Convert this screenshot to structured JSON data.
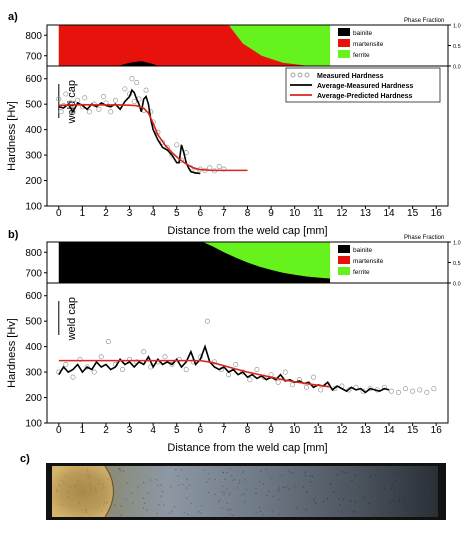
{
  "chart_data": [
    {
      "panel_label": "a)",
      "type": "line",
      "xlabel": "Distance from the weld cap [mm]",
      "ylabel": "Hardness [Hv]",
      "xlim": [
        -0.5,
        16.5
      ],
      "ylim": [
        100,
        650
      ],
      "xticks": [
        0,
        1,
        2,
        3,
        4,
        5,
        6,
        7,
        8,
        9,
        10,
        11,
        12,
        13,
        14,
        15,
        16
      ],
      "yticks": [
        100,
        200,
        300,
        400,
        500,
        600
      ],
      "annotation": "weld cap",
      "legend_position": "top-right",
      "legend": [
        "Measured Hardness",
        "Average-Measured Hardness",
        "Average-Predicted Hardness"
      ],
      "phase_panel": {
        "title": "Phase Fraction",
        "ylim": [
          650,
          850
        ],
        "yticks": [
          700,
          800
        ],
        "right_ticks": [
          "1.0",
          "0.5",
          "0.0"
        ],
        "x_end": 11.5,
        "legend": [
          {
            "name": "bainite",
            "color": "#000000"
          },
          {
            "name": "martensite",
            "color": "#e8120c"
          },
          {
            "name": "ferrite",
            "color": "#66f21c"
          }
        ],
        "bainite": {
          "x": [
            0,
            2.5,
            3,
            3.5,
            4,
            4.2,
            11.5
          ],
          "frac": [
            0,
            0,
            0.08,
            0.12,
            0.05,
            0,
            0
          ]
        },
        "martensite_end": {
          "x": [
            0,
            7.2,
            7.4,
            7.8,
            8.6,
            9.5,
            10.5,
            11.5
          ],
          "frac": [
            1,
            1,
            0.85,
            0.55,
            0.25,
            0.08,
            0.01,
            0
          ]
        }
      },
      "series": [
        {
          "name": "Measured Hardness",
          "style": "markers",
          "x": [
            0,
            0.1,
            0.2,
            0.3,
            0.5,
            0.6,
            0.8,
            1.0,
            1.1,
            1.3,
            1.5,
            1.7,
            1.9,
            2.0,
            2.2,
            2.4,
            2.6,
            2.8,
            3.0,
            3.1,
            3.2,
            3.3,
            3.4,
            3.6,
            3.7,
            3.9,
            4.0,
            4.2,
            4.4,
            4.6,
            4.8,
            5.0,
            5.2,
            5.4,
            5.6,
            5.8,
            6.0,
            6.2,
            6.4,
            6.6,
            6.8,
            7.0
          ],
          "y": [
            520,
            470,
            495,
            540,
            505,
            470,
            515,
            490,
            525,
            470,
            500,
            480,
            530,
            505,
            470,
            515,
            490,
            560,
            540,
            600,
            510,
            585,
            520,
            475,
            555,
            470,
            430,
            390,
            350,
            330,
            300,
            340,
            280,
            310,
            250,
            235,
            245,
            240,
            250,
            238,
            255,
            245
          ]
        },
        {
          "name": "Average-Measured Hardness",
          "color": "#000000",
          "x": [
            0,
            0.2,
            0.4,
            0.6,
            0.8,
            1.0,
            1.2,
            1.4,
            1.6,
            1.8,
            2.0,
            2.2,
            2.4,
            2.6,
            2.8,
            3.0,
            3.1,
            3.2,
            3.3,
            3.4,
            3.5,
            3.6,
            3.7,
            3.8,
            3.9,
            4.0,
            4.1,
            4.2,
            4.4,
            4.6,
            4.8,
            5.0,
            5.1,
            5.2,
            5.3,
            5.4,
            5.5,
            5.6,
            5.8,
            6.0
          ],
          "y": [
            490,
            485,
            500,
            470,
            505,
            495,
            480,
            500,
            490,
            505,
            495,
            490,
            500,
            480,
            510,
            530,
            555,
            545,
            520,
            500,
            470,
            520,
            530,
            500,
            440,
            400,
            380,
            360,
            330,
            320,
            300,
            270,
            270,
            340,
            310,
            270,
            250,
            235,
            230,
            228
          ]
        },
        {
          "name": "Average-Predicted Hardness",
          "color": "#d9261c",
          "x": [
            0,
            0.5,
            1,
            1.5,
            2,
            2.5,
            3,
            3.3,
            3.6,
            3.8,
            4.0,
            4.2,
            4.5,
            4.8,
            5.1,
            5.4,
            5.7,
            6.0,
            6.5,
            7,
            7.5,
            8
          ],
          "y": [
            495,
            497,
            498,
            497,
            497,
            497,
            496,
            494,
            484,
            465,
            425,
            380,
            340,
            310,
            285,
            265,
            250,
            243,
            240,
            240,
            240,
            240
          ]
        }
      ]
    },
    {
      "panel_label": "b)",
      "type": "line",
      "xlabel": "Distance from the weld cap [mm]",
      "ylabel": "Hardness [Hv]",
      "xlim": [
        -0.5,
        16.5
      ],
      "ylim": [
        100,
        650
      ],
      "xticks": [
        0,
        1,
        2,
        3,
        4,
        5,
        6,
        7,
        8,
        9,
        10,
        11,
        12,
        13,
        14,
        15,
        16
      ],
      "yticks": [
        100,
        200,
        300,
        400,
        500,
        600
      ],
      "annotation": "weld cap",
      "phase_panel": {
        "title": "Phase Fraction",
        "ylim": [
          650,
          850
        ],
        "yticks": [
          700,
          800
        ],
        "right_ticks": [
          "1.0",
          "0.5",
          "0.0"
        ],
        "x_end": 11.5,
        "legend": [
          {
            "name": "bainite",
            "color": "#000000"
          },
          {
            "name": "martensite",
            "color": "#e8120c"
          },
          {
            "name": "ferrite",
            "color": "#66f21c"
          }
        ],
        "bainite_top": {
          "x": [
            0,
            6.1,
            6.5,
            7,
            7.5,
            8,
            8.5,
            9,
            9.5,
            10,
            10.5,
            11,
            11.5
          ],
          "frac": [
            1,
            1,
            0.9,
            0.75,
            0.62,
            0.5,
            0.4,
            0.32,
            0.25,
            0.2,
            0.16,
            0.13,
            0.11
          ]
        }
      },
      "series": [
        {
          "name": "Measured Hardness",
          "style": "markers",
          "x": [
            0,
            0.3,
            0.6,
            0.9,
            1.2,
            1.5,
            1.8,
            2.1,
            2.4,
            2.7,
            3.0,
            3.3,
            3.6,
            3.9,
            4.2,
            4.5,
            4.8,
            5.1,
            5.4,
            5.7,
            6.0,
            6.3,
            6.6,
            6.9,
            7.2,
            7.5,
            7.8,
            8.1,
            8.4,
            8.7,
            9.0,
            9.3,
            9.6,
            9.9,
            10.2,
            10.5,
            10.8,
            11.1,
            11.4,
            11.7,
            12.0,
            12.3,
            12.6,
            12.9,
            13.2,
            13.5,
            13.8,
            14.1,
            14.4,
            14.7,
            15.0,
            15.3,
            15.6,
            15.9
          ],
          "y": [
            300,
            330,
            280,
            350,
            320,
            300,
            360,
            420,
            330,
            310,
            350,
            340,
            380,
            320,
            340,
            360,
            330,
            350,
            310,
            340,
            360,
            500,
            340,
            310,
            290,
            330,
            300,
            270,
            310,
            280,
            290,
            260,
            300,
            250,
            270,
            240,
            280,
            230,
            250,
            235,
            245,
            230,
            240,
            225,
            235,
            230,
            240,
            225,
            220,
            235,
            225,
            230,
            220,
            235
          ]
        },
        {
          "name": "Average-Measured Hardness",
          "color": "#000000",
          "x": [
            0,
            0.2,
            0.4,
            0.6,
            0.8,
            1.0,
            1.2,
            1.4,
            1.6,
            1.8,
            2.0,
            2.2,
            2.4,
            2.6,
            2.8,
            3.0,
            3.2,
            3.4,
            3.6,
            3.8,
            4.0,
            4.2,
            4.4,
            4.6,
            4.8,
            5.0,
            5.2,
            5.4,
            5.6,
            5.8,
            6.0,
            6.2,
            6.4,
            6.6,
            6.8,
            7.0,
            7.2,
            7.4,
            7.6,
            7.8,
            8.0,
            8.2,
            8.4,
            8.6,
            8.8,
            9.0,
            9.2,
            9.4,
            9.6,
            9.8,
            10.0,
            10.2,
            10.4,
            10.6,
            10.8,
            11.0,
            11.2,
            11.4,
            11.6,
            11.8,
            12.0,
            12.2,
            12.4,
            12.6,
            12.8,
            13.0,
            13.2,
            13.4,
            13.6,
            13.8,
            14.0
          ],
          "y": [
            290,
            320,
            300,
            310,
            330,
            300,
            320,
            310,
            340,
            320,
            330,
            310,
            320,
            350,
            330,
            340,
            320,
            340,
            330,
            360,
            320,
            350,
            330,
            340,
            330,
            350,
            320,
            340,
            380,
            330,
            350,
            400,
            340,
            320,
            310,
            320,
            300,
            310,
            290,
            300,
            280,
            290,
            275,
            285,
            270,
            280,
            270,
            290,
            265,
            270,
            260,
            265,
            255,
            260,
            240,
            250,
            245,
            260,
            230,
            245,
            235,
            225,
            240,
            230,
            235,
            220,
            235,
            230,
            225,
            235,
            230
          ]
        },
        {
          "name": "Average-Predicted Hardness",
          "color": "#d9261c",
          "x": [
            0,
            1,
            2,
            3,
            4,
            5,
            6,
            6.5,
            7,
            7.5,
            8,
            8.5,
            9,
            9.5,
            10,
            10.5,
            11,
            11.5
          ],
          "y": [
            345,
            345,
            345,
            345,
            345,
            345,
            345,
            338,
            325,
            312,
            300,
            290,
            280,
            270,
            262,
            255,
            248,
            242
          ]
        }
      ]
    }
  ],
  "micrograph": {
    "panel_label": "c)",
    "colors": {
      "weld": "#b08a48",
      "base": "#56606a",
      "frame": "#111111"
    }
  }
}
